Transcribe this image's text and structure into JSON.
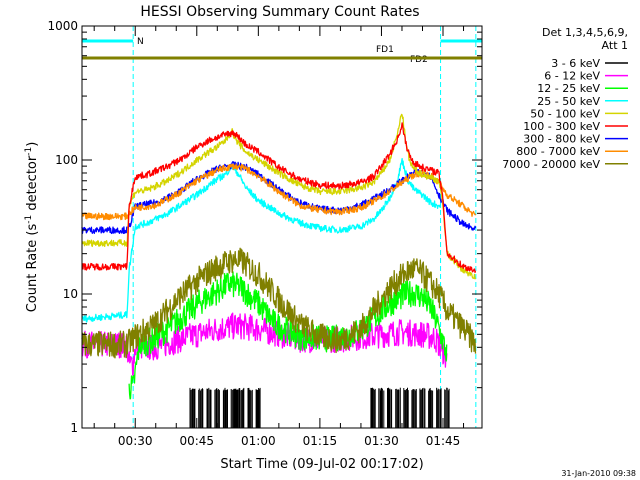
{
  "chart_data": {
    "type": "line",
    "title": "HESSI Observing Summary Count Rates",
    "xlabel": "Start Time (09-Jul-02 00:17:02)",
    "ylabel_main": "Count Rate (s",
    "ylabel_sup1": "-1",
    "ylabel_mid": " detector",
    "ylabel_sup2": "-1",
    "ylabel_end": ")",
    "y_scale": "log",
    "ylim": [
      1,
      1000
    ],
    "xlim_minutes": [
      17.03,
      114.5
    ],
    "x_ticks": [
      {
        "label": "00:30",
        "minute": 30
      },
      {
        "label": "00:45",
        "minute": 45
      },
      {
        "label": "01:00",
        "minute": 60
      },
      {
        "label": "01:15",
        "minute": 75
      },
      {
        "label": "01:30",
        "minute": 90
      },
      {
        "label": "01:45",
        "minute": 105
      }
    ],
    "y_ticks": [
      {
        "label": "1",
        "value": 1
      },
      {
        "label": "10",
        "value": 10
      },
      {
        "label": "100",
        "value": 100
      },
      {
        "label": "1000",
        "value": 1000
      }
    ],
    "legend_title_1": "Det 1,3,4,5,6,9,",
    "legend_title_2": "Att 1",
    "legend": [
      {
        "label": "3 - 6 keV",
        "color": "#000000"
      },
      {
        "label": "6 - 12 keV",
        "color": "#ff00ff"
      },
      {
        "label": "12 - 25 keV",
        "color": "#00ff00"
      },
      {
        "label": "25 - 50 keV",
        "color": "#00ffff"
      },
      {
        "label": "50 - 100 keV",
        "color": "#d4d400"
      },
      {
        "label": "100 - 300 keV",
        "color": "#ff0000"
      },
      {
        "label": "300 - 800 keV",
        "color": "#0000ff"
      },
      {
        "label": "800 - 7000 keV",
        "color": "#ff8c00"
      },
      {
        "label": "7000 - 20000 keV",
        "color": "#808000"
      }
    ],
    "flags": [
      {
        "label": "N",
        "color": "#00ffff"
      },
      {
        "label": "FD1",
        "color": "#808000"
      },
      {
        "label": "FD2",
        "color": "#808000"
      }
    ],
    "night_boundaries_minutes": [
      29.5,
      104.4,
      113.0
    ],
    "series": [
      {
        "band": "3 - 6 keV",
        "color": "#000000",
        "kind": "bursts",
        "x": [
          44,
          46,
          48,
          50,
          52,
          54,
          55,
          56,
          58,
          60,
          88,
          90,
          92,
          94,
          96,
          98,
          100,
          102,
          104,
          106
        ],
        "y": [
          2.0,
          2.0,
          2.0,
          2.0,
          2.0,
          2.0,
          2.0,
          2.0,
          2.0,
          2.0,
          2.0,
          2.0,
          2.0,
          2.0,
          2.0,
          2.0,
          2.0,
          2.0,
          2.0,
          2.0
        ]
      },
      {
        "band": "6 - 12 keV",
        "color": "#ff00ff",
        "x": [
          17,
          28,
          28.5,
          29.5,
          30,
          35,
          40,
          45,
          50,
          55,
          60,
          70,
          80,
          85,
          90,
          95,
          100,
          103,
          104.5,
          106
        ],
        "y": [
          4.2,
          4.2,
          3.0,
          3.0,
          4.0,
          4.0,
          4.5,
          5.0,
          5.5,
          5.8,
          5.5,
          4.6,
          4.6,
          4.8,
          5.0,
          5.2,
          5.0,
          4.7,
          4.0,
          3.2
        ]
      },
      {
        "band": "12 - 25 keV",
        "color": "#00ff00",
        "x": [
          28.5,
          29.5,
          31,
          34,
          38,
          42,
          46,
          50,
          53,
          56,
          60,
          64,
          70,
          78,
          84,
          88,
          92,
          96,
          98,
          100,
          102,
          104,
          106
        ],
        "y": [
          2.0,
          2.0,
          4.2,
          4.5,
          5.5,
          7.0,
          8.8,
          10.5,
          12.0,
          11.0,
          8.5,
          6.0,
          4.8,
          4.6,
          5.2,
          6.5,
          8.5,
          10.0,
          10.2,
          9.5,
          8.0,
          5.5,
          3.5
        ]
      },
      {
        "band": "25 - 50 keV",
        "color": "#00ffff",
        "x": [
          17,
          28,
          28.5,
          30,
          33,
          38,
          42,
          45,
          48,
          50,
          52,
          53.5,
          55,
          57,
          60,
          65,
          70,
          75,
          80,
          85,
          88,
          90,
          92,
          94,
          95,
          96.5,
          98,
          100,
          102,
          104.5
        ],
        "y": [
          6.5,
          7.0,
          15.0,
          32.0,
          34.0,
          40.0,
          48.0,
          55.0,
          65.0,
          72.0,
          78.0,
          90.0,
          80.0,
          62.0,
          50.0,
          40.0,
          34.0,
          31.0,
          30.0,
          32.0,
          36.0,
          42.0,
          52.0,
          72.0,
          100.0,
          70.0,
          60.0,
          55.0,
          48.0,
          45.0
        ]
      },
      {
        "band": "50 - 100 keV",
        "color": "#d4d400",
        "x": [
          17,
          28,
          28.5,
          30,
          33,
          38,
          42,
          45,
          48,
          50,
          52,
          53.5,
          55,
          57,
          60,
          65,
          70,
          75,
          80,
          85,
          88,
          90,
          92,
          94,
          95,
          96,
          97,
          98,
          100,
          102,
          104,
          105,
          106,
          110,
          113
        ],
        "y": [
          24.0,
          24.0,
          45.0,
          58.0,
          60.0,
          70.0,
          85.0,
          100.0,
          115.0,
          125.0,
          140.0,
          165.0,
          135.0,
          115.0,
          100.0,
          80.0,
          65.0,
          58.0,
          58.0,
          62.0,
          68.0,
          80.0,
          100.0,
          160.0,
          230.0,
          130.0,
          95.0,
          85.0,
          78.0,
          74.0,
          70.0,
          45.0,
          20.0,
          15.0,
          13.5
        ]
      },
      {
        "band": "100 - 300 keV",
        "color": "#ff0000",
        "x": [
          17,
          28,
          28.5,
          30,
          33,
          38,
          42,
          45,
          48,
          50,
          52,
          54,
          55,
          57,
          60,
          65,
          70,
          75,
          80,
          85,
          88,
          90,
          92,
          94,
          95,
          96,
          97,
          98,
          100,
          102,
          104,
          105,
          106,
          110,
          113
        ],
        "y": [
          16.0,
          16.0,
          45.0,
          75.0,
          78.0,
          90.0,
          105.0,
          125.0,
          140.0,
          148.0,
          155.0,
          160.0,
          150.0,
          130.0,
          115.0,
          88.0,
          72.0,
          65.0,
          64.0,
          68.0,
          75.0,
          90.0,
          110.0,
          145.0,
          185.0,
          130.0,
          105.0,
          95.0,
          88.0,
          84.0,
          80.0,
          50.0,
          20.0,
          16.0,
          15.0
        ]
      },
      {
        "band": "300 - 800 keV",
        "color": "#0000ff",
        "x": [
          17,
          28,
          28.5,
          30,
          35,
          40,
          45,
          50,
          54,
          57,
          60,
          65,
          70,
          75,
          80,
          85,
          90,
          95,
          98,
          100,
          102,
          104,
          106,
          110,
          113
        ],
        "y": [
          30.0,
          30.0,
          31.0,
          45.0,
          48.0,
          56.0,
          72.0,
          86.0,
          92.0,
          88.0,
          78.0,
          60.0,
          48.0,
          43.0,
          42.0,
          46.0,
          55.0,
          70.0,
          80.0,
          82.0,
          75.0,
          55.0,
          42.0,
          33.0,
          30.0
        ]
      },
      {
        "band": "800 - 7000 keV",
        "color": "#ff8c00",
        "x": [
          17,
          28,
          28.5,
          30,
          35,
          40,
          45,
          50,
          54,
          57,
          60,
          65,
          70,
          75,
          80,
          85,
          90,
          95,
          98,
          100,
          102,
          104,
          106,
          110,
          113
        ],
        "y": [
          38.0,
          38.0,
          40.0,
          44.0,
          46.0,
          55.0,
          70.0,
          84.0,
          90.0,
          86.0,
          76.0,
          58.0,
          46.0,
          42.0,
          41.0,
          44.0,
          53.0,
          68.0,
          78.0,
          80.0,
          76.0,
          68.0,
          55.0,
          45.0,
          38.0
        ]
      },
      {
        "band": "7000 - 20000 keV",
        "color": "#808000",
        "x": [
          17,
          28,
          30,
          35,
          40,
          45,
          50,
          54,
          56,
          60,
          65,
          70,
          75,
          80,
          85,
          88,
          92,
          96,
          98,
          100,
          102,
          104,
          106,
          110,
          113
        ],
        "y": [
          4.2,
          4.2,
          4.8,
          6.0,
          9.0,
          12.5,
          16.0,
          18.0,
          17.5,
          14.0,
          9.0,
          6.0,
          4.8,
          4.5,
          5.5,
          7.5,
          11.0,
          14.5,
          15.5,
          14.0,
          12.0,
          10.0,
          7.5,
          5.5,
          4.2
        ]
      }
    ]
  },
  "footer_timestamp": "31-Jan-2010 09:38"
}
